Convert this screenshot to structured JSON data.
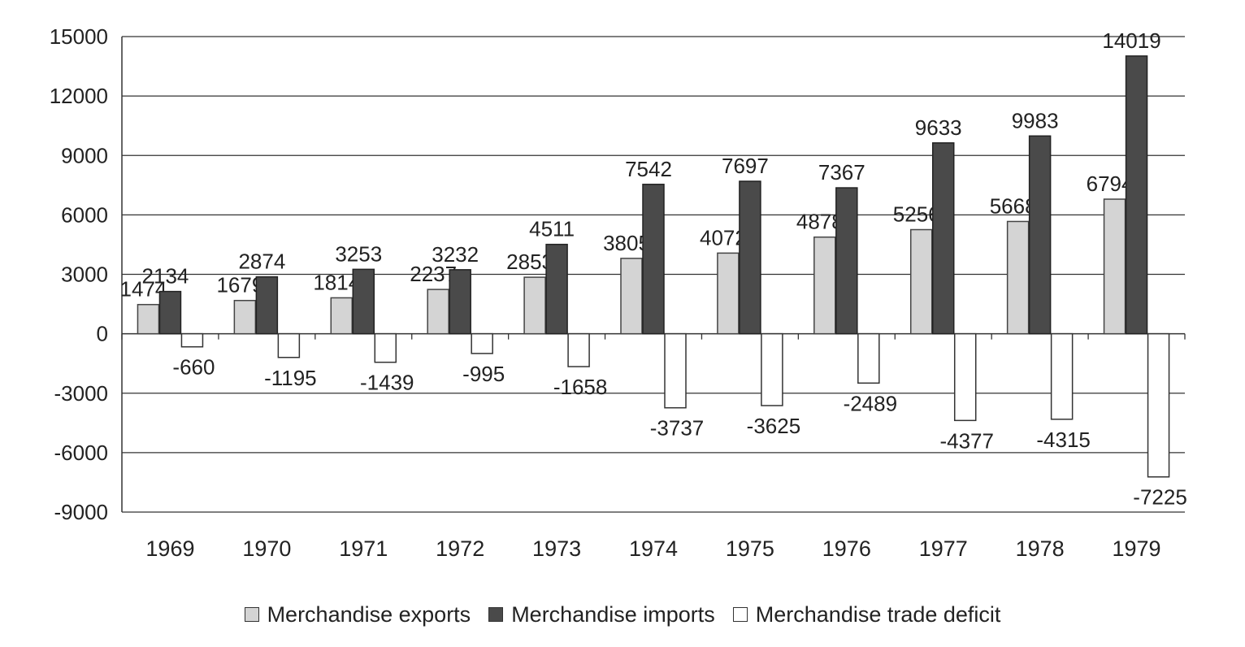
{
  "chart_data": {
    "type": "bar",
    "title": "",
    "xlabel": "",
    "ylabel": "",
    "categories": [
      "1969",
      "1970",
      "1971",
      "1972",
      "1973",
      "1974",
      "1975",
      "1976",
      "1977",
      "1978",
      "1979"
    ],
    "series": [
      {
        "name": "Merchandise exports",
        "color": "#d4d4d4",
        "values": [
          1474,
          1679,
          1814,
          2237,
          2853,
          3805,
          4072,
          4878,
          5256,
          5668,
          6794
        ]
      },
      {
        "name": "Merchandise imports",
        "color": "#4a4a4a",
        "values": [
          2134,
          2874,
          3253,
          3232,
          4511,
          7542,
          7697,
          7367,
          9633,
          9983,
          14019
        ]
      },
      {
        "name": "Merchandise trade deficit",
        "color": "#ffffff",
        "values": [
          -660,
          -1195,
          -1439,
          -995,
          -1658,
          -3737,
          -3625,
          -2489,
          -4377,
          -4315,
          -7225
        ]
      }
    ],
    "ylim": [
      -9000,
      15000
    ],
    "yticks": [
      15000,
      12000,
      9000,
      6000,
      3000,
      0,
      -3000,
      -6000,
      -9000
    ],
    "grid": true,
    "legend_position": "bottom"
  }
}
